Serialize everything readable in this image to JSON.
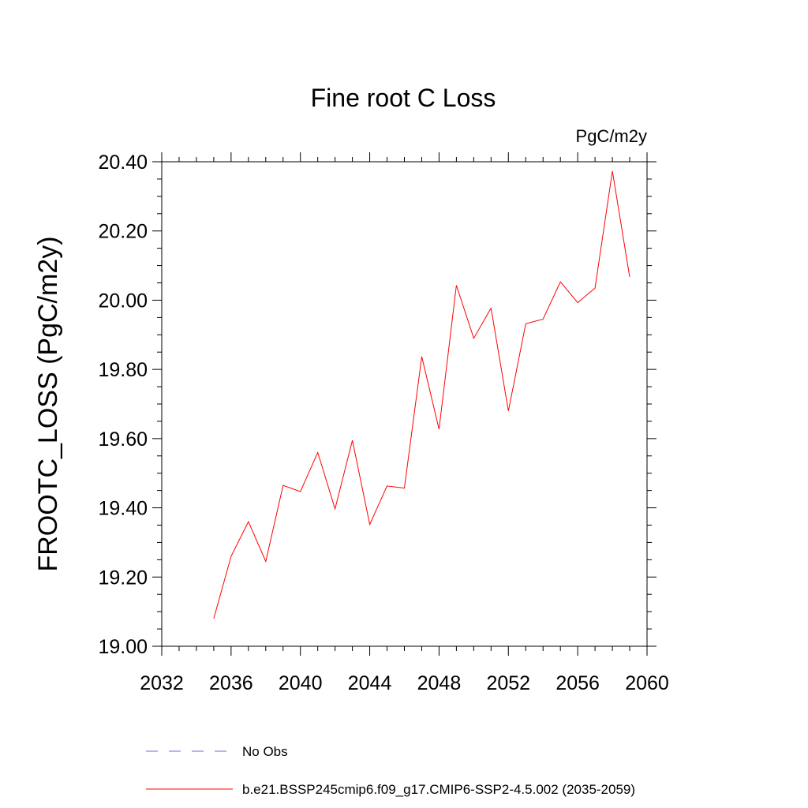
{
  "chart_data": {
    "type": "line",
    "title": "Fine root C Loss",
    "units_label": "PgC/m2y",
    "ylabel": "FROOTC_LOSS  (PgC/m2y)",
    "xlabel": "",
    "xlim": [
      2032,
      2060
    ],
    "ylim": [
      19.0,
      20.4
    ],
    "x_ticks": [
      2032,
      2036,
      2040,
      2044,
      2048,
      2052,
      2056,
      2060
    ],
    "x_tick_labels": [
      "2032",
      "2036",
      "2040",
      "2044",
      "2048",
      "2052",
      "2056",
      "2060"
    ],
    "y_ticks": [
      19.0,
      19.2,
      19.4,
      19.6,
      19.8,
      20.0,
      20.2,
      20.4
    ],
    "y_tick_labels": [
      "19.00",
      "19.20",
      "19.40",
      "19.60",
      "19.80",
      "20.00",
      "20.20",
      "20.40"
    ],
    "grid": false,
    "legend_position": "bottom",
    "x": [
      2035,
      2036,
      2037,
      2038,
      2039,
      2040,
      2041,
      2042,
      2043,
      2044,
      2045,
      2046,
      2047,
      2048,
      2049,
      2050,
      2051,
      2052,
      2053,
      2054,
      2055,
      2056,
      2057,
      2058,
      2059
    ],
    "series": [
      {
        "name": "b.e21.BSSP245cmip6.f09_g17.CMIP6-SSP2-4.5.002 (2035-2059)",
        "color": "#ff0000",
        "style": "solid",
        "values": [
          19.08,
          19.26,
          19.36,
          19.245,
          19.465,
          19.447,
          19.56,
          19.397,
          19.595,
          19.352,
          19.463,
          19.457,
          19.837,
          19.627,
          20.043,
          19.89,
          19.977,
          19.68,
          19.932,
          19.945,
          20.053,
          19.993,
          20.035,
          20.373,
          20.067
        ]
      }
    ],
    "legend": [
      {
        "label": "No Obs",
        "color": "#6f6fcf",
        "style": "dashed"
      },
      {
        "label": "b.e21.BSSP245cmip6.f09_g17.CMIP6-SSP2-4.5.002 (2035-2059)",
        "color": "#ff0000",
        "style": "solid"
      }
    ]
  }
}
